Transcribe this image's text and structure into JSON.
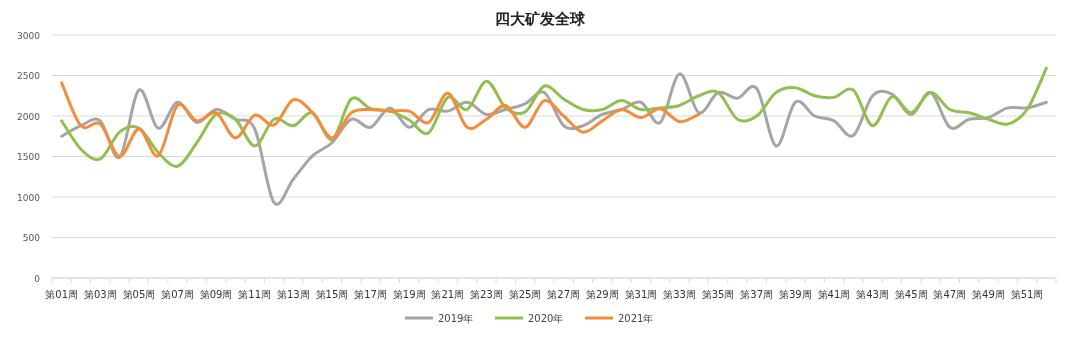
{
  "chart_data": {
    "type": "line",
    "title": "四大矿发全球",
    "categories": [
      "第01周",
      null,
      "第03周",
      null,
      "第05周",
      null,
      "第07周",
      null,
      "第09周",
      null,
      "第11周",
      null,
      "第13周",
      null,
      "第15周",
      null,
      "第17周",
      null,
      "第19周",
      null,
      "第21周",
      null,
      "第23周",
      null,
      "第25周",
      null,
      "第27周",
      null,
      "第29周",
      null,
      "第31周",
      null,
      "第33周",
      null,
      "第35周",
      null,
      "第37周",
      null,
      "第39周",
      null,
      "第41周",
      null,
      "第43周",
      null,
      "第45周",
      null,
      "第47周",
      null,
      "第49周",
      null,
      "第51周",
      null
    ],
    "series": [
      {
        "name": "2019年",
        "color": "#a5a5a5",
        "values": [
          1750,
          1880,
          1940,
          1490,
          2320,
          1850,
          2170,
          1920,
          2080,
          1960,
          1840,
          930,
          1220,
          1510,
          1670,
          1960,
          1860,
          2100,
          1860,
          2080,
          2060,
          2170,
          2020,
          2080,
          2150,
          2290,
          1880,
          1880,
          2020,
          2080,
          2170,
          1920,
          2520,
          2040,
          2290,
          2220,
          2340,
          1630,
          2170,
          2000,
          1940,
          1760,
          2250,
          2270,
          2020,
          2290,
          1860,
          1960,
          1980,
          2100,
          2100,
          2170
        ]
      },
      {
        "name": "2020年",
        "color": "#92c050",
        "values": [
          1940,
          1590,
          1470,
          1800,
          1850,
          1550,
          1380,
          1670,
          2020,
          1960,
          1630,
          1960,
          1880,
          2040,
          1710,
          2210,
          2090,
          2060,
          1950,
          1790,
          2230,
          2080,
          2430,
          2100,
          2050,
          2370,
          2210,
          2080,
          2080,
          2190,
          2080,
          2100,
          2130,
          2250,
          2290,
          1960,
          2000,
          2290,
          2350,
          2250,
          2230,
          2320,
          1880,
          2240,
          2040,
          2290,
          2080,
          2040,
          1960,
          1900,
          2080,
          2590
        ]
      },
      {
        "name": "2021年",
        "color": "#f58c3c",
        "values": [
          2410,
          1880,
          1900,
          1500,
          1840,
          1510,
          2130,
          1940,
          2040,
          1730,
          2010,
          1890,
          2200,
          2040,
          1730,
          2040,
          2080,
          2060,
          2060,
          1920,
          2280,
          1860,
          1960,
          2130,
          1860,
          2190,
          2000,
          1800,
          1940,
          2080,
          1980,
          2090,
          1930,
          2020,
          null,
          null,
          null,
          null,
          null,
          null,
          null,
          null,
          null,
          null,
          null,
          null,
          null,
          null,
          null,
          null,
          null,
          null
        ]
      }
    ],
    "ylim": [
      0,
      3000
    ],
    "yticks": [
      0,
      500,
      1000,
      1500,
      2000,
      2500,
      3000
    ],
    "grid": "y",
    "legend": "bottom",
    "marker": "none",
    "line_style": "solid"
  }
}
